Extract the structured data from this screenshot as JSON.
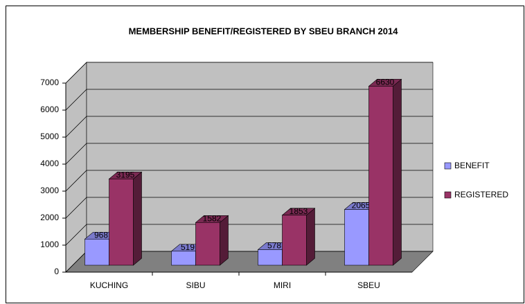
{
  "chart_data": {
    "type": "bar3d",
    "title": "MEMBERSHIP BENEFIT/REGISTERED BY SBEU BRANCH 2014",
    "categories": [
      "KUCHING",
      "SIBU",
      "MIRI",
      "SBEU"
    ],
    "series": [
      {
        "name": "BENEFIT",
        "color": "#9999ff",
        "values": [
          968,
          519,
          578,
          2065
        ]
      },
      {
        "name": "REGISTERED",
        "color": "#993366",
        "values": [
          3195,
          1582,
          1853,
          6630
        ]
      }
    ],
    "ylim": [
      0,
      7000
    ],
    "yticks": [
      0,
      1000,
      2000,
      3000,
      4000,
      5000,
      6000,
      7000
    ],
    "grid": true,
    "legend": "right"
  }
}
